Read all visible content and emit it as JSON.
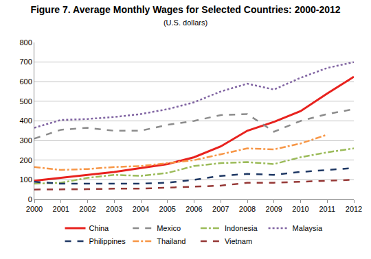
{
  "chart_data": {
    "type": "line",
    "title": "Figure 7. Average Monthly Wages for Selected Countries: 2000-2012",
    "subtitle": "(U.S. dollars)",
    "categories": [
      "2000",
      "2001",
      "2002",
      "2003",
      "2004",
      "2005",
      "2006",
      "2007",
      "2008",
      "2009",
      "2010",
      "2011",
      "2012"
    ],
    "series": [
      {
        "name": "China",
        "color": "#e8221e",
        "line_style": "solid",
        "values": [
          95,
          110,
          125,
          140,
          160,
          180,
          215,
          270,
          350,
          395,
          450,
          540,
          625
        ]
      },
      {
        "name": "Mexico",
        "color": "#8c8c8c",
        "line_style": "dash",
        "values": [
          310,
          355,
          365,
          350,
          350,
          380,
          400,
          430,
          435,
          345,
          400,
          435,
          460
        ]
      },
      {
        "name": "Indonesia",
        "color": "#9bbb59",
        "line_style": "dashdot",
        "values": [
          80,
          85,
          110,
          125,
          120,
          135,
          170,
          185,
          190,
          180,
          215,
          240,
          260
        ]
      },
      {
        "name": "Malaysia",
        "color": "#8064a2",
        "line_style": "dot",
        "values": [
          365,
          405,
          410,
          420,
          435,
          460,
          495,
          550,
          590,
          560,
          620,
          670,
          700
        ]
      },
      {
        "name": "Philippines",
        "color": "#1f3864",
        "line_style": "dash",
        "values": [
          90,
          80,
          80,
          80,
          80,
          85,
          100,
          120,
          130,
          125,
          140,
          150,
          160
        ]
      },
      {
        "name": "Thailand",
        "color": "#f79646",
        "line_style": "dashdot",
        "values": [
          165,
          150,
          155,
          165,
          170,
          185,
          200,
          230,
          260,
          255,
          285,
          330,
          null
        ]
      },
      {
        "name": "Vietnam",
        "color": "#953735",
        "line_style": "dash",
        "values": [
          50,
          50,
          52,
          55,
          55,
          60,
          65,
          70,
          85,
          85,
          90,
          95,
          100
        ]
      }
    ],
    "ylim": [
      0,
      800
    ],
    "yticks": [
      0,
      100,
      200,
      300,
      400,
      500,
      600,
      700,
      800
    ],
    "grid": true,
    "legend": "bottom"
  }
}
